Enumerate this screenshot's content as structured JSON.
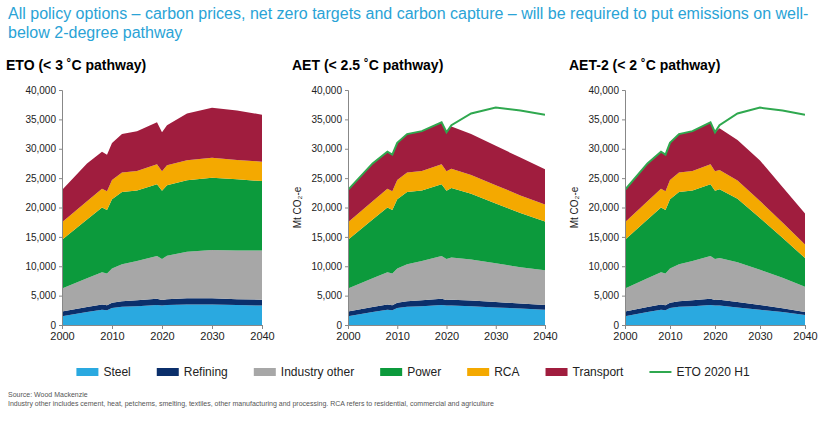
{
  "title": "All policy options – carbon prices, net zero targets and carbon capture – will be required to put emissions on well-below 2-degree pathway",
  "source": "Source: Wood Mackenzie",
  "note": "Industry other includes cement, heat, petchems, smelting, textiles, other manufacturing and processing. RCA refers to residential, commercial and agriculture",
  "legend": "bottom",
  "chart_data": [
    {
      "type": "area",
      "stacked": true,
      "grid": false,
      "title": "ETO (< 3 ˚C pathway)",
      "x": [
        2000,
        2005,
        2008,
        2009,
        2010,
        2012,
        2015,
        2019,
        2020,
        2021,
        2025,
        2030,
        2035,
        2040
      ],
      "xlim": [
        2000,
        2040
      ],
      "xticks": [
        2000,
        2010,
        2020,
        2030,
        2040
      ],
      "ylim": [
        0,
        40000
      ],
      "yticks": [
        0,
        {
          "value": 5000,
          "label": "5,000"
        },
        {
          "value": 10000,
          "label": "10,000"
        },
        {
          "value": 15000,
          "label": "15,000"
        },
        {
          "value": 20000,
          "label": "20,000"
        },
        {
          "value": 25000,
          "label": "25,000"
        },
        {
          "value": 30000,
          "label": "30,000"
        },
        {
          "value": 35000,
          "label": "35,000"
        },
        {
          "value": 40000,
          "label": "40,000"
        }
      ],
      "series": [
        {
          "name": "Steel",
          "color": "#2aa9e0",
          "values": [
            1500,
            2200,
            2600,
            2500,
            2900,
            3100,
            3200,
            3400,
            3300,
            3400,
            3500,
            3500,
            3400,
            3300
          ]
        },
        {
          "name": "Refining",
          "color": "#0b2f6b",
          "values": [
            800,
            850,
            900,
            880,
            900,
            950,
            1000,
            1050,
            950,
            1000,
            1050,
            1050,
            1000,
            1000
          ]
        },
        {
          "name": "Industry other",
          "color": "#a7a7a7",
          "values": [
            3900,
            4900,
            5500,
            5400,
            5800,
            6300,
            6700,
            7300,
            7000,
            7400,
            7900,
            8200,
            8300,
            8400
          ]
        },
        {
          "name": "Power",
          "color": "#0c9a3c",
          "values": [
            8300,
            10000,
            11000,
            10800,
            11800,
            12300,
            12000,
            12200,
            11600,
            12000,
            12200,
            12300,
            12100,
            11800
          ]
        },
        {
          "name": "RCA",
          "color": "#f4a900",
          "values": [
            3000,
            3100,
            3200,
            3200,
            3300,
            3300,
            3300,
            3400,
            3300,
            3400,
            3400,
            3400,
            3300,
            3300
          ]
        },
        {
          "name": "Transport",
          "color": "#a01d3e",
          "values": [
            5500,
            6450,
            6300,
            6220,
            6300,
            6550,
            6800,
            7150,
            6650,
            6800,
            7950,
            8550,
            8400,
            8000
          ]
        }
      ]
    },
    {
      "type": "area",
      "stacked": true,
      "grid": false,
      "title": "AET (< 2.5 ˚C pathway)",
      "y_label": "Mt CO₂-e",
      "x": [
        2000,
        2005,
        2008,
        2009,
        2010,
        2012,
        2015,
        2019,
        2020,
        2021,
        2025,
        2030,
        2035,
        2040
      ],
      "xlim": [
        2000,
        2040
      ],
      "xticks": [
        2000,
        2010,
        2020,
        2030,
        2040
      ],
      "ylim": [
        0,
        40000
      ],
      "yticks": [
        0,
        {
          "value": 5000,
          "label": "5,000"
        },
        {
          "value": 10000,
          "label": "10,000"
        },
        {
          "value": 15000,
          "label": "15,000"
        },
        {
          "value": 20000,
          "label": "20,000"
        },
        {
          "value": 25000,
          "label": "25,000"
        },
        {
          "value": 30000,
          "label": "30,000"
        },
        {
          "value": 35000,
          "label": "35,000"
        },
        {
          "value": 40000,
          "label": "40,000"
        }
      ],
      "series": [
        {
          "name": "Steel",
          "color": "#2aa9e0",
          "values": [
            1500,
            2200,
            2600,
            2500,
            2900,
            3100,
            3200,
            3400,
            3300,
            3300,
            3200,
            3000,
            2800,
            2600
          ]
        },
        {
          "name": "Refining",
          "color": "#0b2f6b",
          "values": [
            800,
            850,
            900,
            880,
            900,
            950,
            1000,
            1050,
            950,
            1000,
            950,
            900,
            850,
            800
          ]
        },
        {
          "name": "Industry other",
          "color": "#a7a7a7",
          "values": [
            3900,
            4900,
            5500,
            5400,
            5800,
            6300,
            6700,
            7300,
            7000,
            7200,
            7000,
            6600,
            6200,
            5900
          ]
        },
        {
          "name": "Power",
          "color": "#0c9a3c",
          "values": [
            8300,
            10000,
            11000,
            10800,
            11800,
            12300,
            12000,
            12200,
            11600,
            11800,
            11200,
            10200,
            9200,
            8300
          ]
        },
        {
          "name": "RCA",
          "color": "#f4a900",
          "values": [
            3000,
            3100,
            3200,
            3200,
            3300,
            3300,
            3300,
            3400,
            3300,
            3300,
            3200,
            3100,
            3000,
            2900
          ]
        },
        {
          "name": "Transport",
          "color": "#a01d3e",
          "values": [
            5500,
            6450,
            6300,
            6220,
            6300,
            6550,
            6800,
            7150,
            6650,
            7200,
            6950,
            6700,
            6450,
            6000
          ]
        },
        {
          "name": "ETO 2020 H1",
          "type": "line",
          "color": "#2fa84f",
          "values": [
            23000,
            27500,
            29500,
            29000,
            31000,
            32500,
            33000,
            34500,
            32800,
            34000,
            36000,
            37000,
            36500,
            35800
          ]
        }
      ]
    },
    {
      "type": "area",
      "stacked": true,
      "grid": false,
      "title": "AET-2 (< 2 ˚C pathway)",
      "y_label": "Mt CO₂-e",
      "x": [
        2000,
        2005,
        2008,
        2009,
        2010,
        2012,
        2015,
        2019,
        2020,
        2021,
        2025,
        2030,
        2035,
        2040
      ],
      "xlim": [
        2000,
        2040
      ],
      "xticks": [
        2000,
        2010,
        2020,
        2030,
        2040
      ],
      "ylim": [
        0,
        40000
      ],
      "yticks": [
        0,
        {
          "value": 5000,
          "label": "5,000"
        },
        {
          "value": 10000,
          "label": "10,000"
        },
        {
          "value": 15000,
          "label": "15,000"
        },
        {
          "value": 20000,
          "label": "20,000"
        },
        {
          "value": 25000,
          "label": "25,000"
        },
        {
          "value": 30000,
          "label": "30,000"
        },
        {
          "value": 35000,
          "label": "35,000"
        },
        {
          "value": 40000,
          "label": "40,000"
        }
      ],
      "series": [
        {
          "name": "Steel",
          "color": "#2aa9e0",
          "values": [
            1500,
            2200,
            2600,
            2500,
            2900,
            3100,
            3200,
            3400,
            3300,
            3300,
            3000,
            2600,
            2200,
            1700
          ]
        },
        {
          "name": "Refining",
          "color": "#0b2f6b",
          "values": [
            800,
            850,
            900,
            880,
            900,
            950,
            1000,
            1050,
            950,
            1000,
            900,
            800,
            650,
            500
          ]
        },
        {
          "name": "Industry other",
          "color": "#a7a7a7",
          "values": [
            3900,
            4900,
            5500,
            5400,
            5800,
            6300,
            6700,
            7300,
            7000,
            7100,
            6800,
            6000,
            5200,
            4300
          ]
        },
        {
          "name": "Power",
          "color": "#0c9a3c",
          "values": [
            8300,
            10000,
            11000,
            10800,
            11800,
            12300,
            12000,
            12200,
            11600,
            11700,
            10800,
            8800,
            6800,
            4900
          ]
        },
        {
          "name": "RCA",
          "color": "#f4a900",
          "values": [
            3000,
            3100,
            3200,
            3200,
            3300,
            3300,
            3300,
            3400,
            3300,
            3300,
            3100,
            2900,
            2600,
            2300
          ]
        },
        {
          "name": "Transport",
          "color": "#a01d3e",
          "values": [
            5500,
            6450,
            6300,
            6220,
            6300,
            6550,
            6800,
            7150,
            6650,
            7100,
            6900,
            6900,
            6050,
            5300
          ]
        },
        {
          "name": "ETO 2020 H1",
          "type": "line",
          "color": "#2fa84f",
          "values": [
            23000,
            27500,
            29500,
            29000,
            31000,
            32500,
            33000,
            34500,
            32800,
            34000,
            36000,
            37000,
            36500,
            35800
          ]
        }
      ]
    }
  ]
}
